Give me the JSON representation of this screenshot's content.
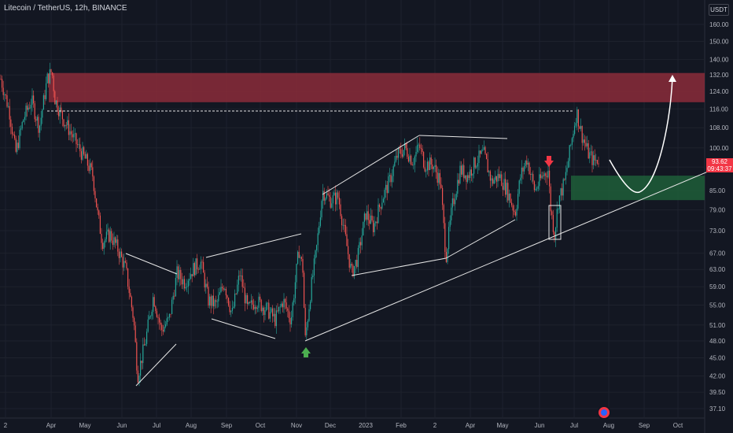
{
  "header": {
    "title": "Litecoin / TetherUS, 12h, BINANCE",
    "currency": "USDT"
  },
  "price_tag": {
    "value": "93.62",
    "countdown": "09:43:37"
  },
  "colors": {
    "background": "#131722",
    "up": "#26a69a",
    "down": "#ef5350",
    "resistance_zone": "#8b2b3a",
    "support_zone": "#1f5e38",
    "drawing": "#e6e6e6"
  },
  "chart_data": {
    "type": "candlestick",
    "symbol": "LTCUSDT",
    "interval": "12h",
    "y_axis": {
      "scale": "log",
      "ticks": [
        "160.00",
        "150.00",
        "140.00",
        "132.00",
        "124.00",
        "116.00",
        "108.00",
        "100.00",
        "93.00",
        "85.00",
        "79.00",
        "73.00",
        "67.00",
        "63.00",
        "59.00",
        "55.00",
        "51.00",
        "48.00",
        "45.00",
        "42.00",
        "39.50",
        "37.10"
      ]
    },
    "x_axis": {
      "ticks": [
        "2",
        "Apr",
        "May",
        "Jun",
        "Jul",
        "Aug",
        "Sep",
        "Oct",
        "Nov",
        "Dec",
        "2023",
        "Feb",
        "2",
        "Apr",
        "May",
        "Jun",
        "Jul",
        "Aug",
        "Sep",
        "Oct"
      ]
    },
    "price_path": [
      [
        1,
        130
      ],
      [
        12,
        115
      ],
      [
        20,
        98
      ],
      [
        30,
        112
      ],
      [
        40,
        120
      ],
      [
        50,
        108
      ],
      [
        60,
        130
      ],
      [
        66,
        134
      ],
      [
        70,
        120
      ],
      [
        80,
        112
      ],
      [
        90,
        106
      ],
      [
        100,
        100
      ],
      [
        110,
        95
      ],
      [
        118,
        90
      ],
      [
        124,
        78
      ],
      [
        130,
        70
      ],
      [
        140,
        72
      ],
      [
        150,
        68
      ],
      [
        160,
        63
      ],
      [
        170,
        52
      ],
      [
        175,
        42
      ],
      [
        185,
        48
      ],
      [
        195,
        57
      ],
      [
        205,
        50
      ],
      [
        215,
        52
      ],
      [
        225,
        62
      ],
      [
        235,
        60
      ],
      [
        245,
        63
      ],
      [
        255,
        65
      ],
      [
        265,
        56
      ],
      [
        275,
        55
      ],
      [
        285,
        60
      ],
      [
        295,
        53
      ],
      [
        305,
        62
      ],
      [
        315,
        54
      ],
      [
        325,
        56
      ],
      [
        340,
        54
      ],
      [
        350,
        52
      ],
      [
        360,
        56
      ],
      [
        370,
        52
      ],
      [
        380,
        68
      ],
      [
        385,
        63
      ],
      [
        388,
        48
      ],
      [
        395,
        58
      ],
      [
        403,
        69
      ],
      [
        410,
        85
      ],
      [
        420,
        82
      ],
      [
        430,
        83
      ],
      [
        440,
        70
      ],
      [
        447,
        62
      ],
      [
        455,
        66
      ],
      [
        465,
        78
      ],
      [
        475,
        74
      ],
      [
        485,
        82
      ],
      [
        495,
        88
      ],
      [
        505,
        97
      ],
      [
        515,
        100
      ],
      [
        525,
        95
      ],
      [
        533,
        101
      ],
      [
        540,
        94
      ],
      [
        550,
        94
      ],
      [
        560,
        88
      ],
      [
        567,
        66
      ],
      [
        575,
        80
      ],
      [
        585,
        92
      ],
      [
        595,
        90
      ],
      [
        605,
        95
      ],
      [
        615,
        98
      ],
      [
        625,
        88
      ],
      [
        635,
        90
      ],
      [
        645,
        85
      ],
      [
        655,
        78
      ],
      [
        662,
        90
      ],
      [
        670,
        96
      ],
      [
        680,
        85
      ],
      [
        690,
        90
      ],
      [
        697,
        92
      ],
      [
        700,
        80
      ],
      [
        705,
        72
      ],
      [
        710,
        82
      ],
      [
        718,
        88
      ],
      [
        728,
        105
      ],
      [
        733,
        115
      ],
      [
        740,
        105
      ],
      [
        748,
        98
      ],
      [
        755,
        95
      ],
      [
        762,
        96
      ]
    ],
    "zones": [
      {
        "name": "resistance",
        "from": 119,
        "to": 133
      },
      {
        "name": "support",
        "from": 82,
        "to": 90
      }
    ],
    "dashed_level": 115,
    "markers": [
      {
        "type": "arrow-up",
        "color": "#4caf50",
        "price": 45
      },
      {
        "type": "arrow-down",
        "color": "#f23645",
        "price": 104
      }
    ]
  }
}
